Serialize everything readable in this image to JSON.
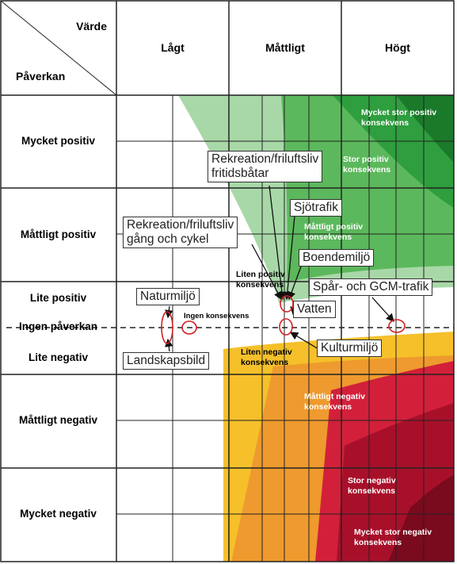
{
  "header": {
    "value": "Värde",
    "impact": "Påverkan"
  },
  "columns": [
    "Lågt",
    "Måttligt",
    "Högt"
  ],
  "rows": [
    "Mycket positiv",
    "Måttligt positiv",
    "Lite positiv",
    "Ingen påverkan",
    "Lite negativ",
    "Måttligt negativ",
    "Mycket negativ"
  ],
  "zones": [
    "Mycket stor positiv\nkonsekvens",
    "Stor positiv\nkonsekvens",
    "Måttligt positiv\nkonsekvens",
    "Liten positiv\nkonsekvens",
    "Ingen konsekvens",
    "Liten negativ\nkonsekvens",
    "Måttligt negativ\nkonsekvens",
    "Stor negativ\nkonsekvens",
    "Mycket stor negativ\nkonsekvens"
  ],
  "items": [
    "Rekreation/friluftsliv\nfritidsbåtar",
    "Sjötrafik",
    "Rekreation/friluftsliv\ngång och cykel",
    "Boendemiljö",
    "Naturmiljö",
    "Spår- och GCM-trafik",
    "Vatten",
    "Kulturmiljö",
    "Landskapsbild"
  ]
}
